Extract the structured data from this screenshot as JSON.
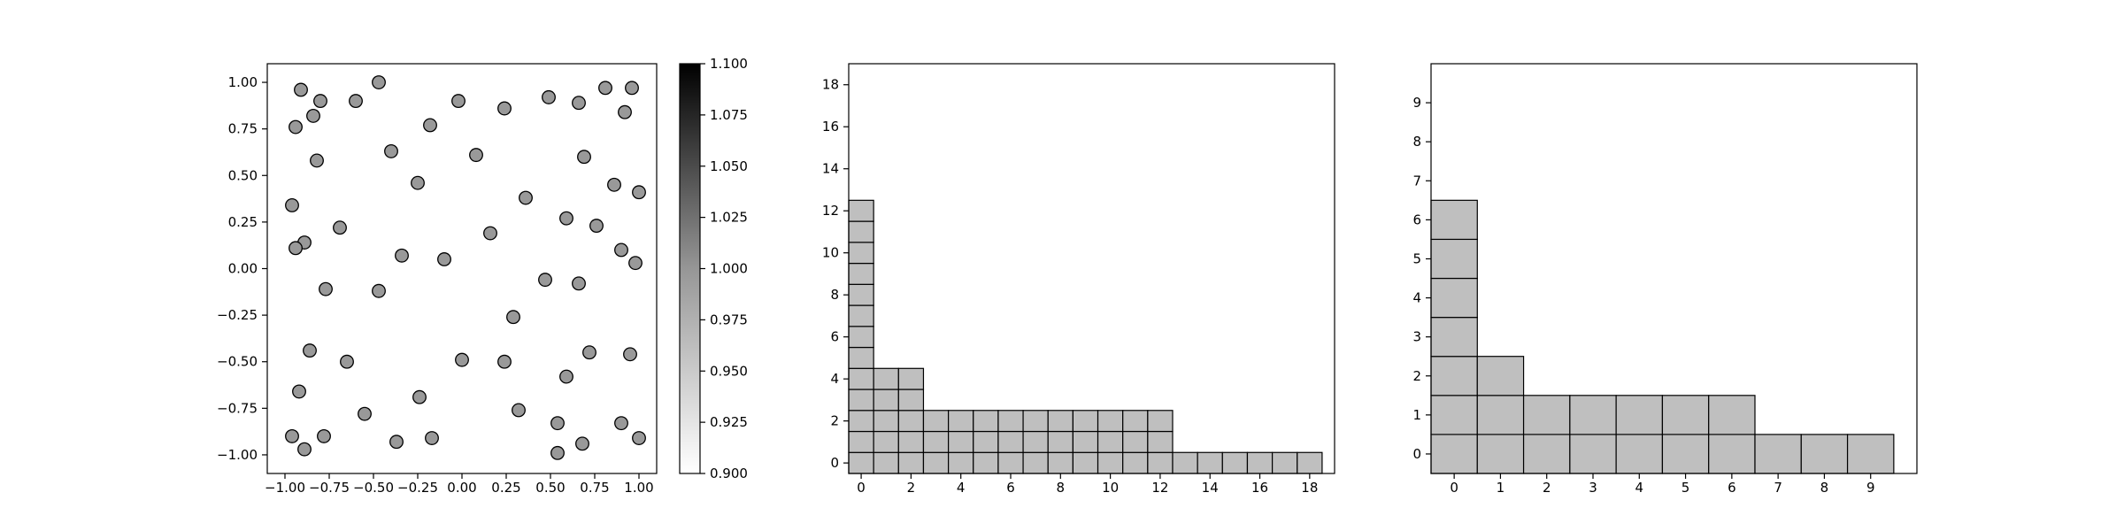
{
  "chart_data": [
    {
      "type": "scatter",
      "title": "",
      "xlabel": "",
      "ylabel": "",
      "xlim": [
        -1.1,
        1.1
      ],
      "ylim": [
        -1.1,
        1.1
      ],
      "xticks": [
        -1.0,
        -0.75,
        -0.5,
        -0.25,
        0.0,
        0.25,
        0.5,
        0.75,
        1.0
      ],
      "xtick_labels": [
        "−1.00",
        "−0.75",
        "−0.50",
        "−0.25",
        "0.00",
        "0.25",
        "0.50",
        "0.75",
        "1.00"
      ],
      "yticks": [
        1.0,
        0.75,
        0.5,
        0.25,
        0.0,
        -0.25,
        -0.5,
        -0.75,
        -1.0
      ],
      "ytick_labels": [
        "1.00",
        "0.75",
        "0.50",
        "0.25",
        "0.00",
        "−0.25",
        "−0.50",
        "−0.75",
        "−1.00"
      ],
      "marker_color": "#999999",
      "marker_edge": "#000000",
      "grid": false,
      "points": [
        [
          -0.91,
          0.96
        ],
        [
          -0.47,
          1.0
        ],
        [
          0.81,
          0.97
        ],
        [
          0.96,
          0.97
        ],
        [
          -0.8,
          0.9
        ],
        [
          -0.6,
          0.9
        ],
        [
          -0.02,
          0.9
        ],
        [
          0.49,
          0.92
        ],
        [
          0.66,
          0.89
        ],
        [
          0.24,
          0.86
        ],
        [
          0.92,
          0.84
        ],
        [
          -0.84,
          0.82
        ],
        [
          -0.94,
          0.76
        ],
        [
          -0.18,
          0.77
        ],
        [
          -0.4,
          0.63
        ],
        [
          0.08,
          0.61
        ],
        [
          0.69,
          0.6
        ],
        [
          -0.82,
          0.58
        ],
        [
          -0.25,
          0.46
        ],
        [
          0.86,
          0.45
        ],
        [
          1.0,
          0.41
        ],
        [
          0.36,
          0.38
        ],
        [
          -0.96,
          0.34
        ],
        [
          0.59,
          0.27
        ],
        [
          0.76,
          0.23
        ],
        [
          -0.69,
          0.22
        ],
        [
          0.16,
          0.19
        ],
        [
          -0.89,
          0.14
        ],
        [
          -0.94,
          0.11
        ],
        [
          0.9,
          0.1
        ],
        [
          -0.34,
          0.07
        ],
        [
          -0.1,
          0.05
        ],
        [
          0.98,
          0.03
        ],
        [
          0.47,
          -0.06
        ],
        [
          0.66,
          -0.08
        ],
        [
          -0.77,
          -0.11
        ],
        [
          -0.47,
          -0.12
        ],
        [
          0.29,
          -0.26
        ],
        [
          -0.86,
          -0.44
        ],
        [
          0.72,
          -0.45
        ],
        [
          0.95,
          -0.46
        ],
        [
          -0.65,
          -0.5
        ],
        [
          0.0,
          -0.49
        ],
        [
          0.24,
          -0.5
        ],
        [
          0.59,
          -0.58
        ],
        [
          -0.92,
          -0.66
        ],
        [
          -0.24,
          -0.69
        ],
        [
          0.32,
          -0.76
        ],
        [
          -0.55,
          -0.78
        ],
        [
          0.54,
          -0.83
        ],
        [
          0.9,
          -0.83
        ],
        [
          -0.96,
          -0.9
        ],
        [
          -0.78,
          -0.9
        ],
        [
          -0.17,
          -0.91
        ],
        [
          1.0,
          -0.91
        ],
        [
          -0.37,
          -0.93
        ],
        [
          0.68,
          -0.94
        ],
        [
          -0.89,
          -0.97
        ],
        [
          0.54,
          -0.99
        ]
      ]
    },
    {
      "type": "colorbar",
      "range": [
        0.9,
        1.1
      ],
      "ticks": [
        1.1,
        1.075,
        1.05,
        1.025,
        1.0,
        0.975,
        0.95,
        0.925,
        0.9
      ],
      "tick_labels": [
        "1.100",
        "1.075",
        "1.050",
        "1.025",
        "1.000",
        "0.975",
        "0.950",
        "0.925",
        "0.900"
      ],
      "colormap": "Greys"
    },
    {
      "type": "bar",
      "title": "",
      "xlabel": "",
      "ylabel": "",
      "style": "stacked unit cells",
      "xlim": [
        -0.5,
        19
      ],
      "ylim": [
        -0.5,
        19
      ],
      "xticks": [
        0,
        2,
        4,
        6,
        8,
        10,
        12,
        14,
        16,
        18
      ],
      "xtick_labels": [
        "0",
        "2",
        "4",
        "6",
        "8",
        "10",
        "12",
        "14",
        "16",
        "18"
      ],
      "yticks": [
        0,
        2,
        4,
        6,
        8,
        10,
        12,
        14,
        16,
        18
      ],
      "ytick_labels": [
        "0",
        "2",
        "4",
        "6",
        "8",
        "10",
        "12",
        "14",
        "16",
        "18"
      ],
      "categories": [
        0,
        1,
        2,
        3,
        4,
        5,
        6,
        7,
        8,
        9,
        10,
        11,
        12,
        13,
        14,
        15,
        16,
        17,
        18
      ],
      "values": [
        13,
        5,
        5,
        3,
        3,
        3,
        3,
        3,
        3,
        3,
        3,
        3,
        3,
        1,
        1,
        1,
        1,
        1,
        1
      ],
      "bar_color": "#bfbfbf",
      "edge_color": "#000000"
    },
    {
      "type": "bar",
      "title": "",
      "xlabel": "",
      "ylabel": "",
      "style": "stacked unit cells",
      "xlim": [
        -0.5,
        10
      ],
      "ylim": [
        -0.5,
        10
      ],
      "xticks": [
        0,
        1,
        2,
        3,
        4,
        5,
        6,
        7,
        8,
        9
      ],
      "xtick_labels": [
        "0",
        "1",
        "2",
        "3",
        "4",
        "5",
        "6",
        "7",
        "8",
        "9"
      ],
      "yticks": [
        0,
        1,
        2,
        3,
        4,
        5,
        6,
        7,
        8,
        9
      ],
      "ytick_labels": [
        "0",
        "1",
        "2",
        "3",
        "4",
        "5",
        "6",
        "7",
        "8",
        "9"
      ],
      "categories": [
        0,
        1,
        2,
        3,
        4,
        5,
        6,
        7,
        8,
        9
      ],
      "values": [
        7,
        3,
        2,
        2,
        2,
        2,
        2,
        1,
        1,
        1
      ],
      "bar_color": "#bfbfbf",
      "edge_color": "#000000"
    }
  ]
}
